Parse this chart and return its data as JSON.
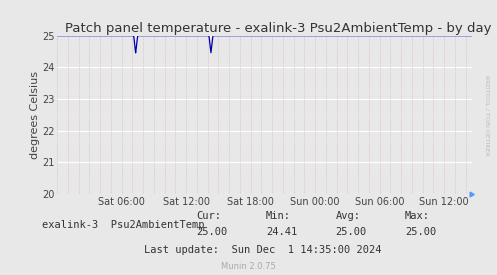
{
  "title": "Patch panel temperature - exalink-3 Psu2AmbientTemp - by day",
  "ylabel": "degrees Celsius",
  "ylim": [
    20,
    25
  ],
  "yticks": [
    20,
    21,
    22,
    23,
    24,
    25
  ],
  "bg_color": "#e8e8e8",
  "plot_bg_color": "#e8e8e8",
  "line_color": "#0000aa",
  "grid_color_major_y": "#ffffff",
  "grid_color_minor_x": "#ddaaaa",
  "xtick_labels": [
    "Sat 06:00",
    "Sat 12:00",
    "Sat 18:00",
    "Sun 00:00",
    "Sun 06:00",
    "Sun 12:00"
  ],
  "legend_label": "exalink-3  Psu2AmbientTemp",
  "legend_color": "#00008b",
  "cur": "25.00",
  "min": "24.41",
  "avg": "25.00",
  "max": "25.00",
  "last_update": "Last update:  Sun Dec  1 14:35:00 2024",
  "munin_version": "Munin 2.0.75",
  "watermark": "RRDTOOL / TOBI OETIKER",
  "title_fontsize": 9.5,
  "label_fontsize": 8,
  "tick_fontsize": 7,
  "stats_fontsize": 7.5
}
